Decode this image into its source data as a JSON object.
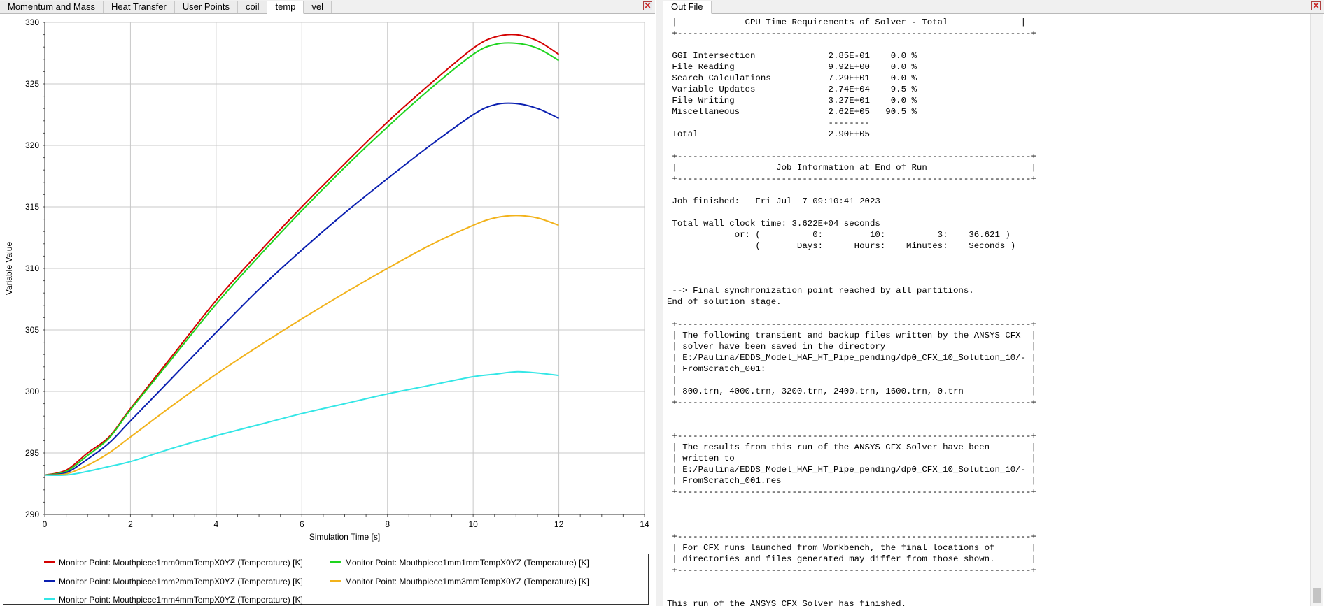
{
  "left_tabs": [
    "Momentum and Mass",
    "Heat Transfer",
    "User Points",
    "coil",
    "temp",
    "vel"
  ],
  "left_active_tab": "temp",
  "right_tabs": [
    "Out File"
  ],
  "close_glyph": "✕",
  "icons": {
    "close": "close-icon"
  },
  "colors": {
    "red": "#d40000",
    "green": "#1ed41e",
    "blue": "#0a1fb0",
    "orange": "#f2b21a",
    "cyan": "#33e6e6",
    "grid": "#c8c8c8"
  },
  "chart_data": {
    "type": "line",
    "title": "",
    "xlabel": "Simulation Time [s]",
    "ylabel": "Variable Value",
    "xlim": [
      0,
      14
    ],
    "ylim": [
      290,
      330
    ],
    "xticks": [
      0,
      2,
      4,
      6,
      8,
      10,
      12,
      14
    ],
    "yticks": [
      290,
      295,
      300,
      305,
      310,
      315,
      320,
      325,
      330
    ],
    "grid": true,
    "legend_placement": "bottom",
    "series": [
      {
        "name": "Monitor Point: Mouthpiece1mm0mmTempX0YZ (Temperature) [K]",
        "color": "#d40000",
        "x": [
          0,
          0.5,
          1,
          1.5,
          2,
          3,
          4,
          5,
          6,
          7,
          8,
          9,
          10,
          10.5,
          11,
          11.5,
          12
        ],
        "y": [
          293.2,
          293.6,
          295.0,
          296.3,
          298.6,
          303.0,
          307.4,
          311.3,
          315.0,
          318.5,
          321.9,
          325.0,
          327.9,
          328.8,
          329.0,
          328.5,
          327.4
        ]
      },
      {
        "name": "Monitor Point: Mouthpiece1mm1mmTempX0YZ (Temperature) [K]",
        "color": "#1ed41e",
        "x": [
          0,
          0.5,
          1,
          1.5,
          2,
          3,
          4,
          5,
          6,
          7,
          8,
          9,
          10,
          10.5,
          11,
          11.5,
          12
        ],
        "y": [
          293.2,
          293.5,
          294.8,
          296.2,
          298.5,
          302.8,
          307.1,
          311.0,
          314.7,
          318.2,
          321.5,
          324.6,
          327.4,
          328.2,
          328.3,
          327.9,
          326.9
        ]
      },
      {
        "name": "Monitor Point: Mouthpiece1mm2mmTempX0YZ (Temperature) [K]",
        "color": "#0a1fb0",
        "x": [
          0,
          0.5,
          1,
          1.5,
          2,
          3,
          4,
          5,
          6,
          7,
          8,
          9,
          10,
          10.5,
          11,
          11.5,
          12
        ],
        "y": [
          293.2,
          293.4,
          294.5,
          295.8,
          297.6,
          301.2,
          304.8,
          308.3,
          311.5,
          314.5,
          317.3,
          320.0,
          322.5,
          323.3,
          323.4,
          323.0,
          322.2
        ]
      },
      {
        "name": "Monitor Point: Mouthpiece1mm3mmTempX0YZ (Temperature) [K]",
        "color": "#f2b21a",
        "x": [
          0,
          0.5,
          1,
          1.5,
          2,
          3,
          4,
          5,
          6,
          7,
          8,
          9,
          10,
          10.5,
          11,
          11.5,
          12
        ],
        "y": [
          293.2,
          293.3,
          294.0,
          295.0,
          296.3,
          298.9,
          301.4,
          303.7,
          305.9,
          308.0,
          310.0,
          311.9,
          313.5,
          314.1,
          314.3,
          314.1,
          313.5
        ]
      },
      {
        "name": "Monitor Point: Mouthpiece1mm4mmTempX0YZ (Temperature) [K]",
        "color": "#33e6e6",
        "x": [
          0,
          0.5,
          1,
          1.5,
          2,
          3,
          4,
          5,
          6,
          7,
          8,
          9,
          10,
          10.5,
          11,
          11.5,
          12
        ],
        "y": [
          293.2,
          293.2,
          293.5,
          293.9,
          294.3,
          295.4,
          296.4,
          297.3,
          298.2,
          299.0,
          299.8,
          300.5,
          301.2,
          301.4,
          301.6,
          301.5,
          301.3
        ]
      }
    ]
  },
  "out_file_text": " |             CPU Time Requirements of Solver - Total              |\n +--------------------------------------------------------------------+\n\n GGI Intersection              2.85E-01    0.0 %\n File Reading                  9.92E+00    0.0 %\n Search Calculations           7.29E+01    0.0 %\n Variable Updates              2.74E+04    9.5 %\n File Writing                  3.27E+01    0.0 %\n Miscellaneous                 2.62E+05   90.5 %\n                               --------\n Total                         2.90E+05\n\n +--------------------------------------------------------------------+\n |                   Job Information at End of Run                    |\n +--------------------------------------------------------------------+\n\n Job finished:   Fri Jul  7 09:10:41 2023\n\n Total wall clock time: 3.622E+04 seconds\n             or: (          0:         10:          3:    36.621 )\n                 (       Days:      Hours:    Minutes:    Seconds )\n\n\n\n --> Final synchronization point reached by all partitions.\nEnd of solution stage.\n\n +--------------------------------------------------------------------+\n | The following transient and backup files written by the ANSYS CFX  |\n | solver have been saved in the directory                            |\n | E:/Paulina/EDDS_Model_HAF_HT_Pipe_pending/dp0_CFX_10_Solution_10/- |\n | FromScratch_001:                                                   |\n |                                                                    |\n | 800.trn, 4000.trn, 3200.trn, 2400.trn, 1600.trn, 0.trn             |\n +--------------------------------------------------------------------+\n\n\n +--------------------------------------------------------------------+\n | The results from this run of the ANSYS CFX Solver have been        |\n | written to                                                         |\n | E:/Paulina/EDDS_Model_HAF_HT_Pipe_pending/dp0_CFX_10_Solution_10/- |\n | FromScratch_001.res                                                |\n +--------------------------------------------------------------------+\n\n\n\n +--------------------------------------------------------------------+\n | For CFX runs launched from Workbench, the final locations of       |\n | directories and files generated may differ from those shown.       |\n +--------------------------------------------------------------------+\n\n\nThis run of the ANSYS CFX Solver has finished."
}
